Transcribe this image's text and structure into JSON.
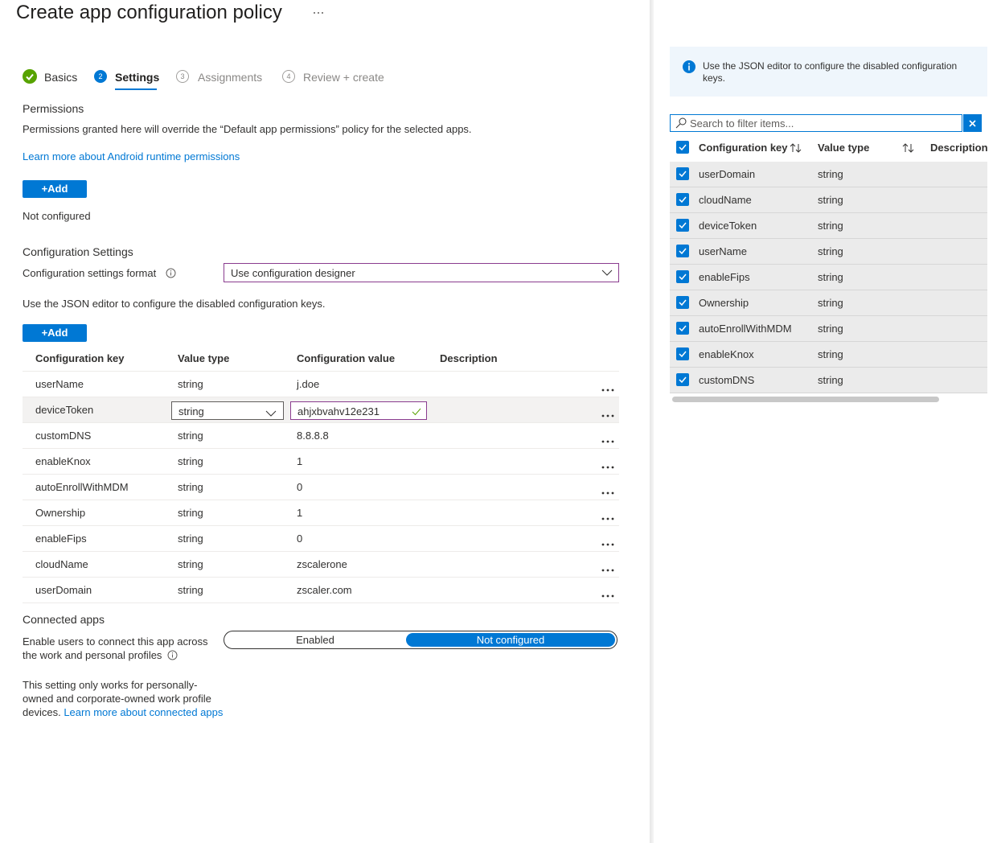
{
  "header": {
    "title": "Create app configuration policy"
  },
  "steps": [
    {
      "label": "Basics"
    },
    {
      "number": 2,
      "label": "Settings"
    },
    {
      "number": 3,
      "label": "Assignments"
    },
    {
      "number": 4,
      "label": "Review + create"
    }
  ],
  "permissions": {
    "heading": "Permissions",
    "description": "Permissions granted here will override the “Default app permissions” policy for the selected apps.",
    "link": "Learn more about Android runtime permissions",
    "add_button": "+Add",
    "status": "Not configured"
  },
  "configuration_settings": {
    "heading": "Configuration Settings",
    "format_label": "Configuration settings format",
    "format_value": "Use configuration designer",
    "note": "Use the JSON editor to configure the disabled configuration keys.",
    "add_button": "+Add",
    "table": {
      "columns": [
        "Configuration key",
        "Value type",
        "Configuration value",
        "Description"
      ],
      "rows": [
        {
          "key": "userName",
          "type": "string",
          "value": "j.doe"
        },
        {
          "key": "deviceToken",
          "type": "string",
          "value": "ahjxbvahv12e231"
        },
        {
          "key": "customDNS",
          "type": "string",
          "value": "8.8.8.8"
        },
        {
          "key": "enableKnox",
          "type": "string",
          "value": "1"
        },
        {
          "key": "autoEnrollWithMDM",
          "type": "string",
          "value": "0"
        },
        {
          "key": "Ownership",
          "type": "string",
          "value": "1"
        },
        {
          "key": "enableFips",
          "type": "string",
          "value": "0"
        },
        {
          "key": "cloudName",
          "type": "string",
          "value": "zscalerone"
        },
        {
          "key": "userDomain",
          "type": "string",
          "value": "zscaler.com"
        }
      ]
    }
  },
  "connected_apps": {
    "heading": "Connected apps",
    "label": "Enable users to connect this app across the work and personal profiles",
    "options": [
      "Enabled",
      "Not configured"
    ],
    "note": "This setting only works for personally-owned and corporate-owned work profile devices.",
    "note_link": "Learn more about connected apps"
  },
  "side_panel": {
    "info": "Use the JSON editor to configure the disabled configuration keys.",
    "search_placeholder": "Search to filter items...",
    "columns": [
      "Configuration key",
      "Value type",
      "Description"
    ],
    "rows": [
      {
        "key": "userDomain",
        "type": "string"
      },
      {
        "key": "cloudName",
        "type": "string"
      },
      {
        "key": "deviceToken",
        "type": "string"
      },
      {
        "key": "userName",
        "type": "string"
      },
      {
        "key": "enableFips",
        "type": "string"
      },
      {
        "key": "Ownership",
        "type": "string"
      },
      {
        "key": "autoEnrollWithMDM",
        "type": "string"
      },
      {
        "key": "enableKnox",
        "type": "string"
      },
      {
        "key": "customDNS",
        "type": "string"
      }
    ]
  }
}
